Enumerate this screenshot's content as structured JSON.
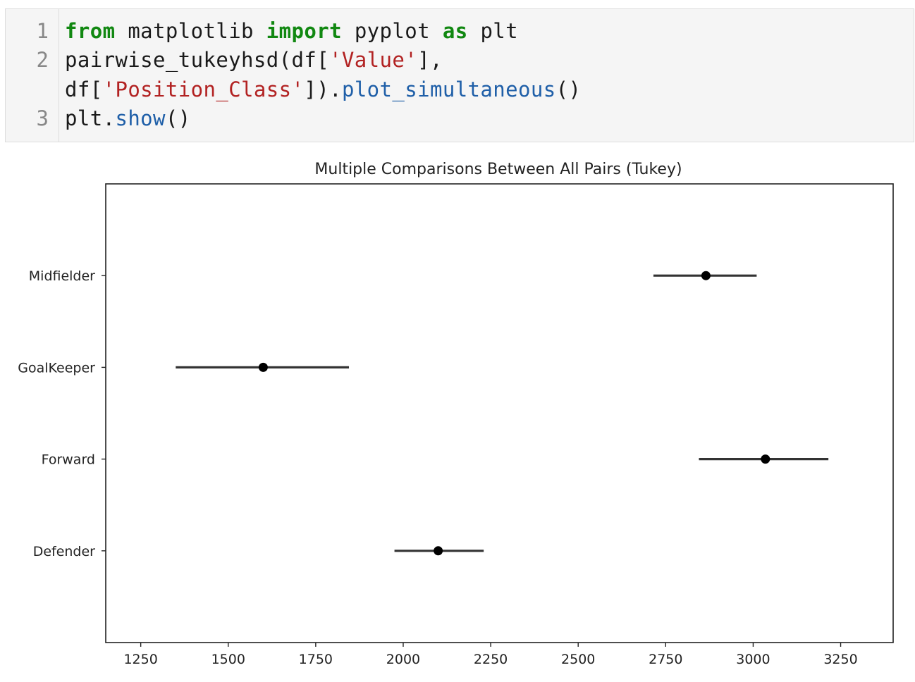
{
  "code_cell": {
    "lines": [
      {
        "number": "1",
        "tokens": [
          {
            "text": "from",
            "kind": "kw"
          },
          {
            "text": " matplotlib ",
            "kind": "plain"
          },
          {
            "text": "import",
            "kind": "kw"
          },
          {
            "text": " pyplot ",
            "kind": "plain"
          },
          {
            "text": "as",
            "kind": "kw"
          },
          {
            "text": " plt",
            "kind": "plain"
          }
        ]
      },
      {
        "number": "2",
        "tokens": [
          {
            "text": "pairwise_tukeyhsd(df[",
            "kind": "plain"
          },
          {
            "text": "'Value'",
            "kind": "str"
          },
          {
            "text": "],",
            "kind": "plain"
          }
        ]
      },
      {
        "number": "",
        "tokens": [
          {
            "text": "df[",
            "kind": "plain"
          },
          {
            "text": "'Position_Class'",
            "kind": "str"
          },
          {
            "text": "]).",
            "kind": "plain"
          },
          {
            "text": "plot_simultaneous",
            "kind": "fn"
          },
          {
            "text": "()",
            "kind": "plain"
          }
        ]
      },
      {
        "number": "3",
        "tokens": [
          {
            "text": "plt.",
            "kind": "plain"
          },
          {
            "text": "show",
            "kind": "fn"
          },
          {
            "text": "()",
            "kind": "plain"
          }
        ]
      }
    ]
  },
  "chart_data": {
    "type": "scatter",
    "title": "Multiple Comparisons Between All Pairs (Tukey)",
    "xlabel": "",
    "ylabel": "",
    "xlim": [
      1150,
      3400
    ],
    "xticks": [
      1250,
      1500,
      1750,
      2000,
      2250,
      2500,
      2750,
      3000,
      3250
    ],
    "grid": false,
    "categories": [
      "Midfielder",
      "GoalKeeper",
      "Forward",
      "Defender"
    ],
    "series": [
      {
        "points": [
          {
            "category": "Midfielder",
            "mean": 2865,
            "lower": 2715,
            "upper": 3010
          },
          {
            "category": "GoalKeeper",
            "mean": 1600,
            "lower": 1350,
            "upper": 1845
          },
          {
            "category": "Forward",
            "mean": 3035,
            "lower": 2845,
            "upper": 3215
          },
          {
            "category": "Defender",
            "mean": 2100,
            "lower": 1975,
            "upper": 2230
          }
        ]
      }
    ],
    "colors": {
      "marker": "#000000",
      "errorbar": "#333333",
      "axes": "#222222"
    }
  }
}
